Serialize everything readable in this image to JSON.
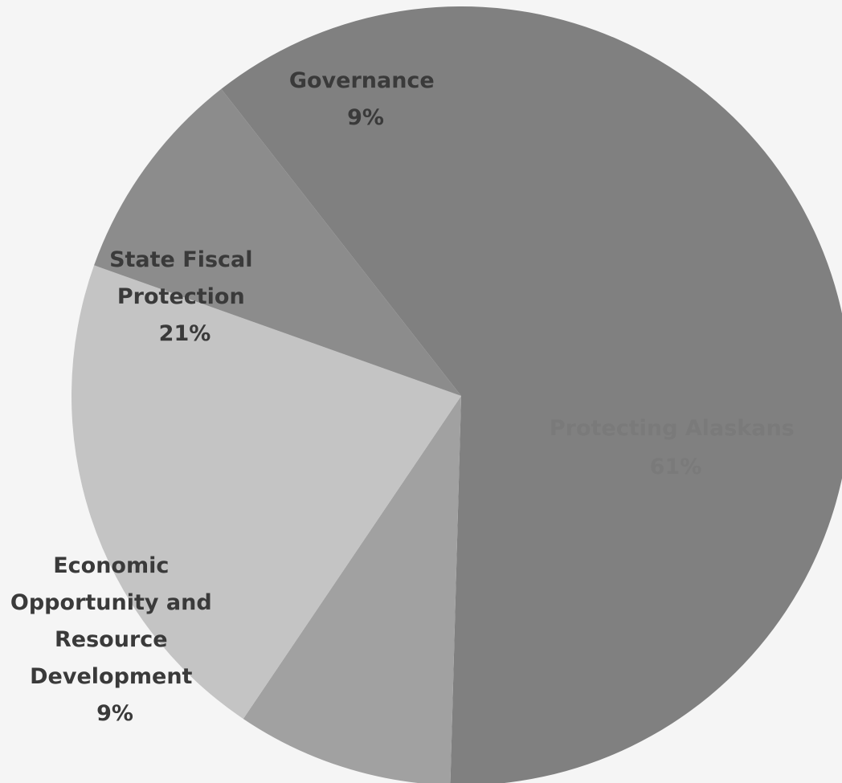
{
  "chart_data": {
    "type": "pie",
    "slices": [
      {
        "label": "Protecting Alaskans",
        "label_lines": [
          "Protecting Alaskans",
          "61%"
        ],
        "value": 61,
        "color": "#808080"
      },
      {
        "label": "Economic Opportunity and Resource Development",
        "label_lines": [
          "Economic",
          "Opportunity and",
          "Resource",
          "Development",
          "9%"
        ],
        "value": 9,
        "color": "#a1a1a1"
      },
      {
        "label": "State Fiscal Protection",
        "label_lines": [
          "State Fiscal",
          "Protection",
          "21%"
        ],
        "value": 21,
        "color": "#c4c4c4"
      },
      {
        "label": "Governance",
        "label_lines": [
          "Governance",
          "9%"
        ],
        "value": 9,
        "color": "#8c8c8c"
      }
    ],
    "label_colors": {
      "dark": "#3a3a3a",
      "light": "#7a7a7a"
    }
  }
}
